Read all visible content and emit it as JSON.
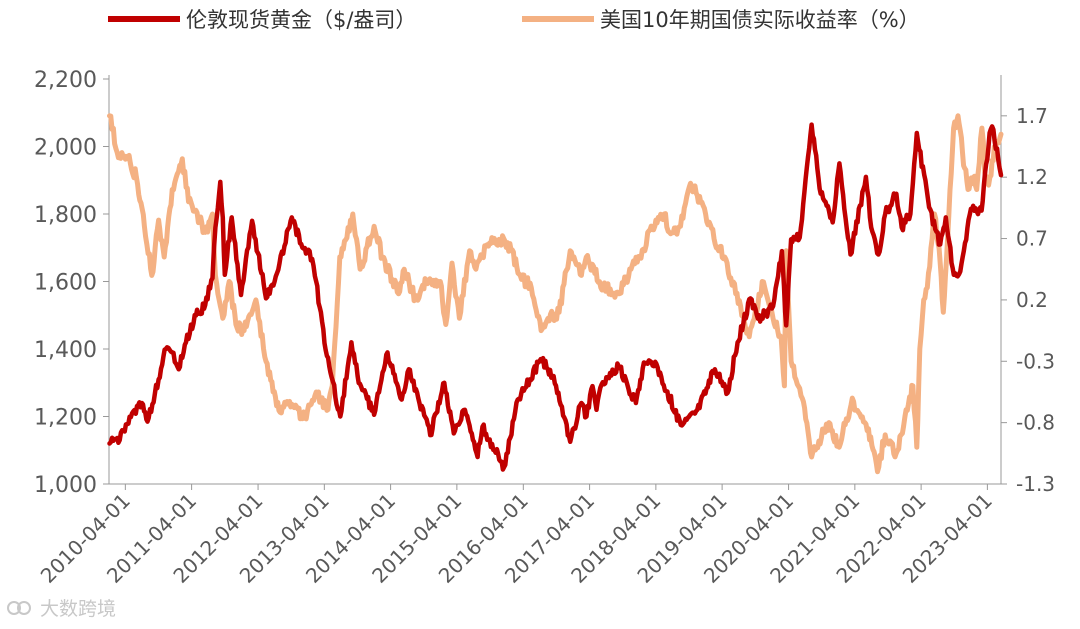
{
  "chart_data": {
    "type": "line",
    "title": "",
    "legend_position": "top",
    "grid": false,
    "x": {
      "type": "date",
      "range": [
        "2010-01-01",
        "2023-06-15"
      ],
      "tick_labels": [
        "2010-04-01",
        "2011-04-01",
        "2012-04-01",
        "2013-04-01",
        "2014-04-01",
        "2015-04-01",
        "2016-04-01",
        "2017-04-01",
        "2018-04-01",
        "2019-04-01",
        "2020-04-01",
        "2021-04-01",
        "2022-04-01",
        "2023-04-01"
      ]
    },
    "y_left": {
      "ylim": [
        1000,
        2200
      ],
      "tick_labels": [
        "1,000",
        "1,200",
        "1,400",
        "1,600",
        "1,800",
        "2,000",
        "2,200"
      ],
      "tick_values": [
        1000,
        1200,
        1400,
        1600,
        1800,
        2000,
        2200
      ]
    },
    "y_right": {
      "ylim": [
        -1.3,
        2.0
      ],
      "tick_labels": [
        "-1.3",
        "-0.8",
        "-0.3",
        "0.2",
        "0.7",
        "1.2",
        "1.7"
      ],
      "tick_values": [
        -1.3,
        -0.8,
        -0.3,
        0.2,
        0.7,
        1.2,
        1.7
      ]
    },
    "series": [
      {
        "name": "伦敦现货黄金（$/盎司）",
        "axis": "left",
        "color": "#c00000",
        "points": [
          [
            "2010-01-04",
            1120
          ],
          [
            "2010-03-01",
            1130
          ],
          [
            "2010-05-15",
            1215
          ],
          [
            "2010-07-01",
            1240
          ],
          [
            "2010-08-01",
            1185
          ],
          [
            "2010-10-01",
            1310
          ],
          [
            "2010-11-10",
            1400
          ],
          [
            "2010-12-15",
            1390
          ],
          [
            "2011-01-20",
            1340
          ],
          [
            "2011-03-01",
            1420
          ],
          [
            "2011-04-25",
            1500
          ],
          [
            "2011-06-15",
            1530
          ],
          [
            "2011-07-25",
            1610
          ],
          [
            "2011-08-10",
            1760
          ],
          [
            "2011-09-06",
            1895
          ],
          [
            "2011-09-20",
            1790
          ],
          [
            "2011-10-01",
            1620
          ],
          [
            "2011-11-08",
            1790
          ],
          [
            "2011-12-29",
            1560
          ],
          [
            "2012-02-28",
            1780
          ],
          [
            "2012-05-15",
            1550
          ],
          [
            "2012-07-01",
            1600
          ],
          [
            "2012-10-04",
            1790
          ],
          [
            "2012-12-01",
            1700
          ],
          [
            "2013-01-10",
            1690
          ],
          [
            "2013-02-15",
            1600
          ],
          [
            "2013-04-15",
            1380
          ],
          [
            "2013-06-28",
            1200
          ],
          [
            "2013-08-28",
            1420
          ],
          [
            "2013-10-01",
            1320
          ],
          [
            "2013-12-31",
            1205
          ],
          [
            "2014-03-15",
            1390
          ],
          [
            "2014-06-01",
            1250
          ],
          [
            "2014-07-10",
            1340
          ],
          [
            "2014-11-05",
            1145
          ],
          [
            "2015-01-22",
            1300
          ],
          [
            "2015-03-15",
            1150
          ],
          [
            "2015-05-15",
            1220
          ],
          [
            "2015-07-24",
            1080
          ],
          [
            "2015-08-20",
            1170
          ],
          [
            "2015-12-17",
            1050
          ],
          [
            "2016-03-01",
            1250
          ],
          [
            "2016-07-06",
            1370
          ],
          [
            "2016-09-15",
            1320
          ],
          [
            "2016-12-15",
            1125
          ],
          [
            "2017-02-15",
            1240
          ],
          [
            "2017-03-15",
            1200
          ],
          [
            "2017-04-17",
            1290
          ],
          [
            "2017-05-09",
            1220
          ],
          [
            "2017-06-06",
            1295
          ],
          [
            "2017-09-08",
            1350
          ],
          [
            "2017-12-12",
            1240
          ],
          [
            "2018-01-25",
            1360
          ],
          [
            "2018-04-11",
            1345
          ],
          [
            "2018-08-16",
            1175
          ],
          [
            "2018-11-15",
            1220
          ],
          [
            "2019-02-20",
            1340
          ],
          [
            "2019-05-01",
            1270
          ],
          [
            "2019-06-25",
            1420
          ],
          [
            "2019-09-04",
            1550
          ],
          [
            "2019-10-15",
            1490
          ],
          [
            "2019-12-31",
            1520
          ],
          [
            "2020-02-24",
            1690
          ],
          [
            "2020-03-19",
            1470
          ],
          [
            "2020-04-15",
            1725
          ],
          [
            "2020-06-01",
            1730
          ],
          [
            "2020-08-06",
            2065
          ],
          [
            "2020-09-25",
            1860
          ],
          [
            "2020-11-30",
            1775
          ],
          [
            "2021-01-06",
            1950
          ],
          [
            "2021-03-08",
            1680
          ],
          [
            "2021-06-01",
            1910
          ],
          [
            "2021-06-30",
            1760
          ],
          [
            "2021-08-09",
            1680
          ],
          [
            "2021-09-15",
            1800
          ],
          [
            "2021-11-16",
            1860
          ],
          [
            "2021-12-15",
            1760
          ],
          [
            "2022-02-01",
            1800
          ],
          [
            "2022-03-08",
            2040
          ],
          [
            "2022-05-15",
            1820
          ],
          [
            "2022-07-15",
            1710
          ],
          [
            "2022-08-15",
            1790
          ],
          [
            "2022-09-28",
            1620
          ],
          [
            "2022-11-03",
            1630
          ],
          [
            "2022-12-31",
            1815
          ],
          [
            "2023-02-28",
            1810
          ],
          [
            "2023-04-13",
            2040
          ],
          [
            "2023-05-04",
            2050
          ],
          [
            "2023-05-31",
            1960
          ],
          [
            "2023-06-15",
            1915
          ]
        ]
      },
      {
        "name": "美国10年期国债实际收益率（%）",
        "axis": "right",
        "color": "#f4b183",
        "points": [
          [
            "2010-01-04",
            1.7
          ],
          [
            "2010-02-15",
            1.4
          ],
          [
            "2010-04-15",
            1.35
          ],
          [
            "2010-06-01",
            1.2
          ],
          [
            "2010-07-15",
            0.8
          ],
          [
            "2010-08-25",
            0.4
          ],
          [
            "2010-10-01",
            0.85
          ],
          [
            "2010-11-01",
            0.55
          ],
          [
            "2010-12-15",
            1.1
          ],
          [
            "2011-02-09",
            1.35
          ],
          [
            "2011-03-15",
            1.0
          ],
          [
            "2011-05-15",
            0.85
          ],
          [
            "2011-06-15",
            0.75
          ],
          [
            "2011-07-25",
            0.9
          ],
          [
            "2011-08-10",
            0.4
          ],
          [
            "2011-09-20",
            0.05
          ],
          [
            "2011-10-25",
            0.35
          ],
          [
            "2011-12-01",
            0.0
          ],
          [
            "2012-01-15",
            -0.05
          ],
          [
            "2012-03-20",
            0.2
          ],
          [
            "2012-05-15",
            -0.3
          ],
          [
            "2012-07-25",
            -0.7
          ],
          [
            "2012-09-15",
            -0.65
          ],
          [
            "2012-12-15",
            -0.75
          ],
          [
            "2013-02-15",
            -0.55
          ],
          [
            "2013-04-15",
            -0.7
          ],
          [
            "2013-05-15",
            -0.5
          ],
          [
            "2013-06-25",
            0.55
          ],
          [
            "2013-09-05",
            0.9
          ],
          [
            "2013-10-15",
            0.45
          ],
          [
            "2013-12-31",
            0.8
          ],
          [
            "2014-02-15",
            0.55
          ],
          [
            "2014-05-15",
            0.25
          ],
          [
            "2014-06-15",
            0.45
          ],
          [
            "2014-08-15",
            0.2
          ],
          [
            "2014-10-15",
            0.35
          ],
          [
            "2014-12-31",
            0.35
          ],
          [
            "2015-01-30",
            0.0
          ],
          [
            "2015-03-05",
            0.5
          ],
          [
            "2015-04-15",
            0.05
          ],
          [
            "2015-06-10",
            0.6
          ],
          [
            "2015-07-15",
            0.45
          ],
          [
            "2015-09-15",
            0.65
          ],
          [
            "2015-12-15",
            0.7
          ],
          [
            "2016-01-25",
            0.6
          ],
          [
            "2016-03-15",
            0.4
          ],
          [
            "2016-05-15",
            0.3
          ],
          [
            "2016-07-08",
            -0.05
          ],
          [
            "2016-08-15",
            0.05
          ],
          [
            "2016-10-15",
            0.1
          ],
          [
            "2016-12-15",
            0.6
          ],
          [
            "2017-02-15",
            0.4
          ],
          [
            "2017-03-14",
            0.55
          ],
          [
            "2017-06-15",
            0.3
          ],
          [
            "2017-09-07",
            0.25
          ],
          [
            "2017-11-15",
            0.45
          ],
          [
            "2018-01-30",
            0.6
          ],
          [
            "2018-02-15",
            0.75
          ],
          [
            "2018-05-17",
            0.9
          ],
          [
            "2018-06-15",
            0.75
          ],
          [
            "2018-08-15",
            0.8
          ],
          [
            "2018-10-09",
            1.15
          ],
          [
            "2018-11-15",
            1.05
          ],
          [
            "2018-12-31",
            0.9
          ],
          [
            "2019-02-15",
            0.7
          ],
          [
            "2019-04-15",
            0.55
          ],
          [
            "2019-06-15",
            0.25
          ],
          [
            "2019-08-28",
            -0.1
          ],
          [
            "2019-10-15",
            0.15
          ],
          [
            "2019-11-08",
            0.35
          ],
          [
            "2019-12-31",
            0.1
          ],
          [
            "2020-02-20",
            -0.1
          ],
          [
            "2020-03-09",
            -0.5
          ],
          [
            "2020-03-19",
            0.6
          ],
          [
            "2020-04-15",
            -0.3
          ],
          [
            "2020-06-15",
            -0.6
          ],
          [
            "2020-08-06",
            -1.08
          ],
          [
            "2020-09-15",
            -0.95
          ],
          [
            "2020-11-09",
            -0.8
          ],
          [
            "2021-01-05",
            -1.0
          ],
          [
            "2021-03-18",
            -0.6
          ],
          [
            "2021-04-15",
            -0.7
          ],
          [
            "2021-06-15",
            -0.85
          ],
          [
            "2021-08-04",
            -1.2
          ],
          [
            "2021-09-15",
            -0.9
          ],
          [
            "2021-11-15",
            -1.05
          ],
          [
            "2022-01-15",
            -0.7
          ],
          [
            "2022-02-15",
            -0.5
          ],
          [
            "2022-03-08",
            -1.0
          ],
          [
            "2022-03-25",
            -0.2
          ],
          [
            "2022-04-15",
            0.2
          ],
          [
            "2022-05-05",
            0.3
          ],
          [
            "2022-06-14",
            0.9
          ],
          [
            "2022-07-15",
            0.5
          ],
          [
            "2022-08-01",
            0.1
          ],
          [
            "2022-08-25",
            0.7
          ],
          [
            "2022-09-27",
            1.6
          ],
          [
            "2022-10-21",
            1.7
          ],
          [
            "2022-11-15",
            1.4
          ],
          [
            "2022-12-15",
            1.1
          ],
          [
            "2023-01-15",
            1.2
          ],
          [
            "2023-02-01",
            1.1
          ],
          [
            "2023-03-02",
            1.6
          ],
          [
            "2023-03-24",
            1.15
          ],
          [
            "2023-04-15",
            1.2
          ],
          [
            "2023-05-15",
            1.45
          ],
          [
            "2023-06-15",
            1.55
          ]
        ]
      }
    ]
  },
  "legend": {
    "gold_label": "伦敦现货黄金（$/盎司）",
    "yield_label": "美国10年期国债实际收益率（%）"
  },
  "watermark": {
    "text": "大数跨境"
  }
}
